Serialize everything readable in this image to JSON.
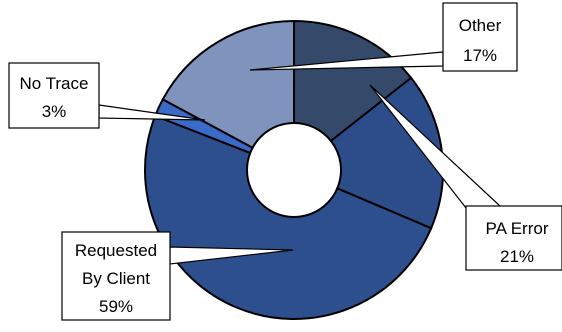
{
  "chart_data": {
    "type": "pie",
    "variant": "doughnut",
    "slices": [
      {
        "category": "Other",
        "value": 17,
        "label": "17%",
        "color": "#354a6b"
      },
      {
        "category": "PA Error",
        "value": 21,
        "label": "21%",
        "color": "#2d4c8a"
      },
      {
        "category": "Requested By Client",
        "value": 59,
        "label": "59%",
        "color": "#2e4f8e"
      },
      {
        "category": "No Trace",
        "value": 3,
        "label": "3%",
        "color": "#3a6bc9"
      }
    ],
    "extra_segment_color": "#7f93bd",
    "legend": "none",
    "data_labels": "callouts"
  }
}
